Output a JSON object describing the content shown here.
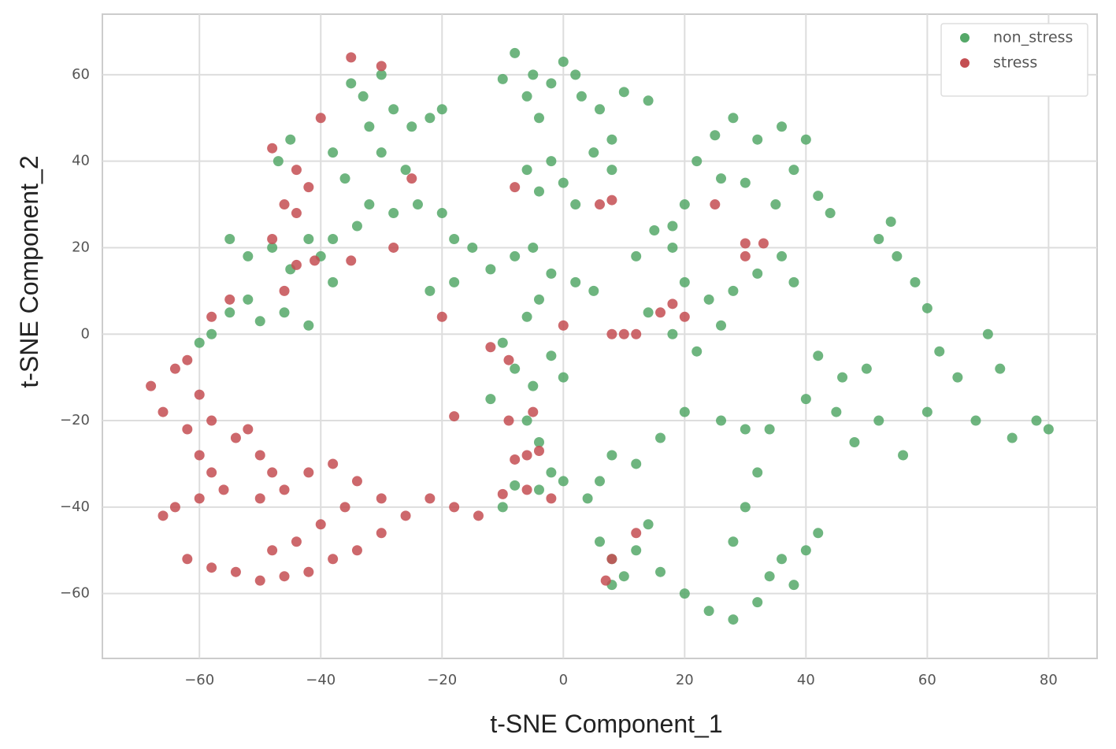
{
  "chart_data": {
    "type": "scatter",
    "x_label": "t-SNE Component_1",
    "y_label": "t-SNE Component_2",
    "xlim": [
      -76,
      88
    ],
    "ylim": [
      -75,
      74
    ],
    "xticks": [
      {
        "value": -60,
        "label": "−60"
      },
      {
        "value": -40,
        "label": "−40"
      },
      {
        "value": -20,
        "label": "−20"
      },
      0,
      20,
      40,
      60,
      80
    ],
    "yticks": [
      {
        "value": -60,
        "label": "−60"
      },
      {
        "value": -40,
        "label": "−40"
      },
      {
        "value": -20,
        "label": "−20"
      },
      0,
      20,
      40,
      60
    ],
    "grid": true,
    "legend": "upper right",
    "series": [
      {
        "name": "non_stress",
        "color": "#55a868",
        "x": [
          -35,
          -33,
          -30,
          -28,
          -25,
          -22,
          -20,
          -32,
          -38,
          -36,
          -30,
          -26,
          -24,
          -20,
          -18,
          -28,
          -32,
          -34,
          -38,
          -45,
          -47,
          -8,
          -5,
          -2,
          0,
          2,
          -6,
          -4,
          -10,
          3,
          6,
          10,
          14,
          8,
          5,
          -2,
          -6,
          0,
          2,
          -4,
          8,
          22,
          25,
          28,
          32,
          36,
          40,
          38,
          42,
          44,
          30,
          26,
          20,
          18,
          35,
          -55,
          -52,
          -48,
          -45,
          -42,
          -40,
          -38,
          -52,
          -55,
          -50,
          -46,
          -42,
          -58,
          -60,
          -15,
          -12,
          -8,
          -5,
          -2,
          2,
          5,
          -18,
          -22,
          -4,
          -6,
          12,
          15,
          18,
          20,
          24,
          28,
          32,
          36,
          38,
          14,
          18,
          22,
          26,
          52,
          54,
          55,
          58,
          60,
          42,
          46,
          50,
          45,
          48,
          52,
          56,
          62,
          65,
          70,
          72,
          68,
          74,
          78,
          80,
          60,
          40,
          -10,
          -8,
          -5,
          -2,
          0,
          -12,
          -6,
          -4,
          -2,
          -8,
          -10,
          -4,
          0,
          4,
          6,
          8,
          12,
          16,
          20,
          26,
          30,
          34,
          32,
          30,
          28,
          6,
          8,
          10,
          12,
          8,
          16,
          20,
          24,
          28,
          32,
          34,
          38,
          40,
          42,
          36,
          14
        ],
        "values": [
          58,
          55,
          60,
          52,
          48,
          50,
          52,
          48,
          42,
          36,
          42,
          38,
          30,
          28,
          22,
          28,
          30,
          25,
          22,
          45,
          40,
          65,
          60,
          58,
          63,
          60,
          55,
          50,
          59,
          55,
          52,
          56,
          54,
          45,
          42,
          40,
          38,
          35,
          30,
          33,
          38,
          40,
          46,
          50,
          45,
          48,
          45,
          38,
          32,
          28,
          35,
          36,
          30,
          25,
          30,
          22,
          18,
          20,
          15,
          22,
          18,
          12,
          8,
          5,
          3,
          5,
          2,
          0,
          -2,
          20,
          15,
          18,
          20,
          14,
          12,
          10,
          12,
          10,
          8,
          4,
          18,
          24,
          20,
          12,
          8,
          10,
          14,
          18,
          12,
          5,
          0,
          -4,
          2,
          22,
          26,
          18,
          12,
          6,
          -5,
          -10,
          -8,
          -18,
          -25,
          -20,
          -28,
          -4,
          -10,
          0,
          -8,
          -20,
          -24,
          -20,
          -22,
          -18,
          -15,
          -2,
          -8,
          -12,
          -5,
          -10,
          -15,
          -20,
          -25,
          -32,
          -35,
          -40,
          -36,
          -34,
          -38,
          -34,
          -28,
          -30,
          -24,
          -18,
          -20,
          -22,
          -22,
          -32,
          -40,
          -48,
          -48,
          -52,
          -56,
          -50,
          -58,
          -55,
          -60,
          -64,
          -66,
          -62,
          -56,
          -58,
          -50,
          -46,
          -52,
          -44
        ]
      },
      {
        "name": "stress",
        "color": "#c44e52",
        "x": [
          -68,
          -66,
          -64,
          -62,
          -60,
          -58,
          -62,
          -60,
          -58,
          -56,
          -60,
          -64,
          -66,
          -54,
          -52,
          -50,
          -48,
          -46,
          -50,
          -62,
          -58,
          -54,
          -50,
          -46,
          -42,
          -38,
          -34,
          -30,
          -26,
          -22,
          -18,
          -14,
          -42,
          -38,
          -34,
          -30,
          -36,
          -40,
          -44,
          -48,
          -48,
          -44,
          -42,
          -46,
          -44,
          -48,
          -44,
          -41,
          -46,
          -55,
          -58,
          -35,
          -30,
          -40,
          -25,
          -20,
          -35,
          -28,
          -8,
          6,
          8,
          -12,
          -9,
          -18,
          0,
          8,
          10,
          12,
          16,
          18,
          20,
          25,
          30,
          33,
          30,
          -10,
          -6,
          -4,
          -6,
          -8,
          -2,
          12,
          8,
          7,
          -5,
          -9
        ],
        "values": [
          -12,
          -18,
          -8,
          -6,
          -14,
          -20,
          -22,
          -28,
          -32,
          -36,
          -38,
          -40,
          -42,
          -24,
          -22,
          -28,
          -32,
          -36,
          -38,
          -52,
          -54,
          -55,
          -57,
          -56,
          -55,
          -52,
          -50,
          -46,
          -42,
          -38,
          -40,
          -42,
          -32,
          -30,
          -34,
          -38,
          -40,
          -44,
          -48,
          -50,
          43,
          38,
          34,
          30,
          28,
          22,
          16,
          17,
          10,
          8,
          4,
          64,
          62,
          50,
          36,
          4,
          17,
          20,
          34,
          30,
          31,
          -3,
          -6,
          -19,
          2,
          0,
          0,
          0,
          5,
          7,
          4,
          30,
          21,
          21,
          18,
          -37,
          -36,
          -27,
          -28,
          -29,
          -38,
          -46,
          -52,
          -57,
          -18,
          -20
        ]
      }
    ]
  }
}
